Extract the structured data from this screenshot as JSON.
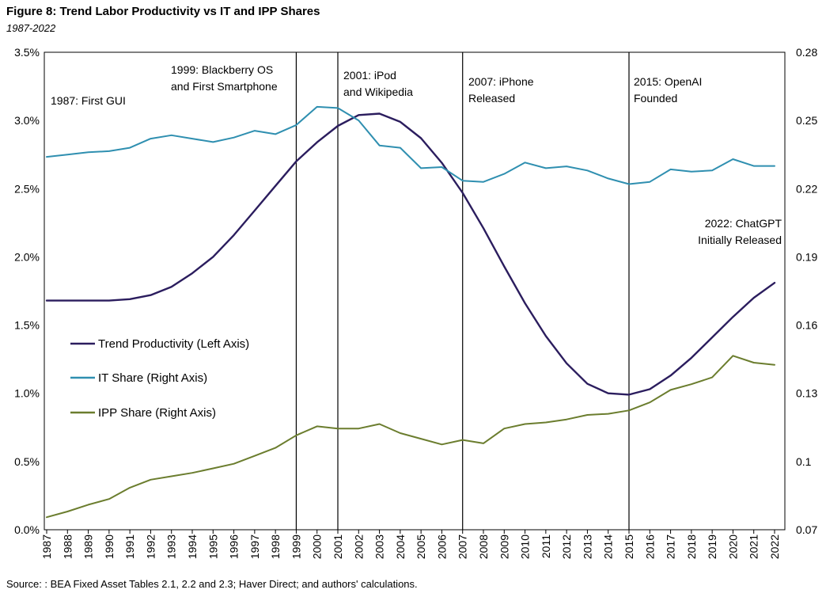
{
  "chart_data": {
    "type": "line",
    "title": "Figure 8: Trend Labor Productivity vs IT and IPP Shares",
    "subtitle": "1987-2022",
    "source": "Source: : BEA Fixed Asset Tables 2.1, 2.2 and 2.3; Haver Direct; and authors' calculations.",
    "x": [
      1987,
      1988,
      1989,
      1990,
      1991,
      1992,
      1993,
      1994,
      1995,
      1996,
      1997,
      1998,
      1999,
      2000,
      2001,
      2002,
      2003,
      2004,
      2005,
      2006,
      2007,
      2008,
      2009,
      2010,
      2011,
      2012,
      2013,
      2014,
      2015,
      2016,
      2017,
      2018,
      2019,
      2020,
      2021,
      2022
    ],
    "x_tick_labels": [
      "1987",
      "1988",
      "1989",
      "1990",
      "1991",
      "1992",
      "1993",
      "1994",
      "1995",
      "1996",
      "1997",
      "1998",
      "1999",
      "2000",
      "2001",
      "2002",
      "2003",
      "2004",
      "2005",
      "2006",
      "2007",
      "2008",
      "2009",
      "2010",
      "2011",
      "2012",
      "2013",
      "2014",
      "2015",
      "2016",
      "2017",
      "2018",
      "2019",
      "2020",
      "2021",
      "2022"
    ],
    "left_axis": {
      "ylim": [
        0.0,
        3.5
      ],
      "ticks": [
        0.0,
        0.5,
        1.0,
        1.5,
        2.0,
        2.5,
        3.0,
        3.5
      ],
      "tick_labels": [
        "0.0%",
        "0.5%",
        "1.0%",
        "1.5%",
        "2.0%",
        "2.5%",
        "3.0%",
        "3.5%"
      ]
    },
    "right_axis": {
      "ylim": [
        0.07,
        0.28
      ],
      "ticks": [
        0.07,
        0.1,
        0.13,
        0.16,
        0.19,
        0.22,
        0.25,
        0.28
      ],
      "tick_labels": [
        "0.07",
        "0.1",
        "0.13",
        "0.16",
        "0.19",
        "0.22",
        "0.25",
        "0.28"
      ]
    },
    "series": [
      {
        "name": "Trend Productivity (Left Axis)",
        "axis": "left",
        "color": "#2b1d5e",
        "values": [
          1.68,
          1.68,
          1.68,
          1.68,
          1.69,
          1.72,
          1.78,
          1.88,
          2.0,
          2.16,
          2.34,
          2.52,
          2.7,
          2.84,
          2.96,
          3.04,
          3.05,
          2.99,
          2.87,
          2.69,
          2.47,
          2.21,
          1.93,
          1.66,
          1.42,
          1.22,
          1.07,
          1.0,
          0.99,
          1.03,
          1.13,
          1.26,
          1.41,
          1.56,
          1.7,
          1.81
        ]
      },
      {
        "name": "IT Share (Right Axis)",
        "axis": "right",
        "color": "#2f8fb0",
        "values": [
          0.234,
          0.235,
          0.236,
          0.2365,
          0.238,
          0.242,
          0.2435,
          0.242,
          0.2405,
          0.2425,
          0.2455,
          0.244,
          0.248,
          0.256,
          0.2555,
          0.25,
          0.239,
          0.238,
          0.229,
          0.2295,
          0.2235,
          0.223,
          0.2265,
          0.2315,
          0.229,
          0.2298,
          0.228,
          0.2245,
          0.222,
          0.223,
          0.2285,
          0.2275,
          0.228,
          0.233,
          0.23,
          0.23
        ]
      },
      {
        "name": "IPP Share (Right Axis)",
        "axis": "right",
        "color": "#6b7d2e",
        "values": [
          0.0755,
          0.078,
          0.081,
          0.0835,
          0.0885,
          0.092,
          0.0935,
          0.095,
          0.097,
          0.099,
          0.1025,
          0.106,
          0.1115,
          0.1155,
          0.1145,
          0.1145,
          0.1165,
          0.1125,
          0.11,
          0.1075,
          0.1095,
          0.108,
          0.1145,
          0.1165,
          0.1172,
          0.1185,
          0.1205,
          0.121,
          0.1225,
          0.126,
          0.1315,
          0.134,
          0.137,
          0.1465,
          0.1435,
          0.1425
        ]
      }
    ],
    "events": [
      {
        "year": 1999,
        "label_lines": [
          "1999: Blackberry OS",
          "and First Smartphone"
        ]
      },
      {
        "year": 2001,
        "label_lines": [
          "2001: iPod",
          "and Wikipedia"
        ]
      },
      {
        "year": 2007,
        "label_lines": [
          "2007: iPhone",
          "Released"
        ]
      },
      {
        "year": 2015,
        "label_lines": [
          "2015: OpenAI",
          "Founded"
        ]
      }
    ],
    "annotations": [
      {
        "label_lines": [
          "1987: First GUI"
        ]
      },
      {
        "label_lines": [
          "2022: ChatGPT",
          "Initially Released"
        ]
      }
    ],
    "legend_position": "left-middle",
    "grid": false
  }
}
